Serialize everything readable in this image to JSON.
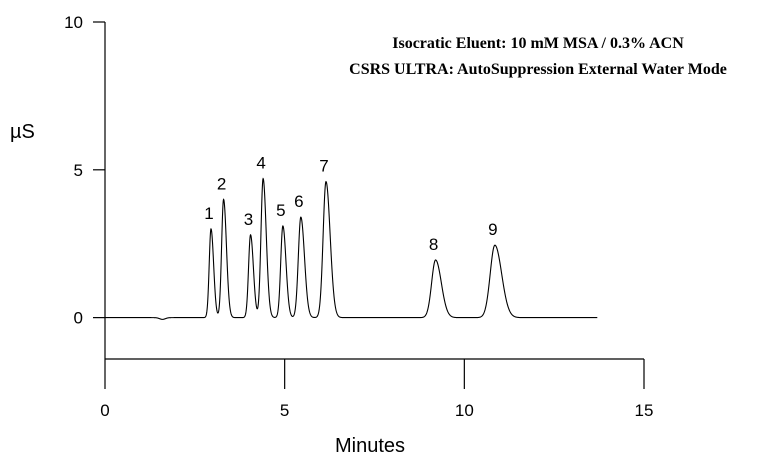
{
  "chart_data": {
    "type": "line",
    "title": "",
    "xlabel": "Minutes",
    "ylabel": "µS",
    "xlim": [
      0,
      15
    ],
    "ylim": [
      -1.4,
      10
    ],
    "x_ticks": [
      "0",
      "5",
      "10",
      "15"
    ],
    "y_ticks": [
      "0",
      "5",
      "10"
    ],
    "grid": false,
    "annotations": [
      "Isocratic Eluent: 10 mM MSA / 0.3% ACN",
      "CSRS ULTRA: AutoSuppression External Water Mode"
    ],
    "trace": {
      "x_start": 0,
      "x_end": 13.7,
      "baseline": 0,
      "dip": {
        "x": 1.6,
        "y": -0.06
      }
    },
    "peaks": [
      {
        "label": "1",
        "x": 2.95,
        "y": 3.0
      },
      {
        "label": "2",
        "x": 3.3,
        "y": 4.0
      },
      {
        "label": "3",
        "x": 4.05,
        "y": 2.8
      },
      {
        "label": "4",
        "x": 4.4,
        "y": 4.7
      },
      {
        "label": "5",
        "x": 4.95,
        "y": 3.1
      },
      {
        "label": "6",
        "x": 5.45,
        "y": 3.4
      },
      {
        "label": "7",
        "x": 6.15,
        "y": 4.6
      },
      {
        "label": "8",
        "x": 9.2,
        "y": 1.95
      },
      {
        "label": "9",
        "x": 10.85,
        "y": 2.45
      }
    ]
  }
}
